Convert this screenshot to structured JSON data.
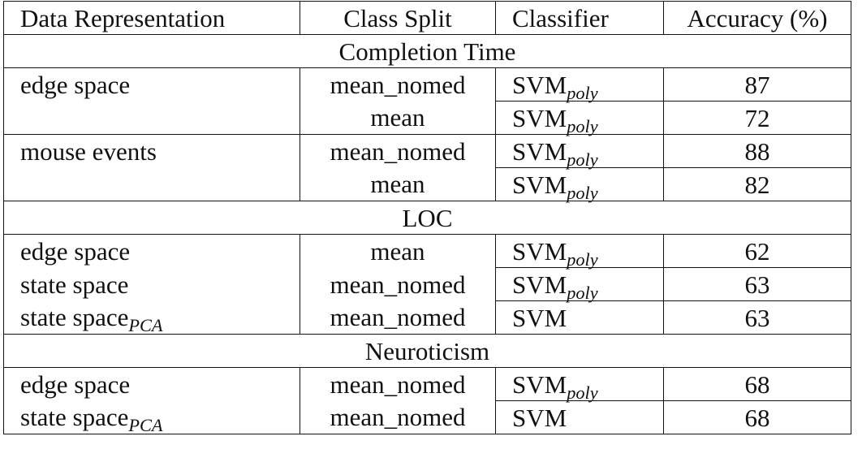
{
  "table": {
    "headers": [
      "Data Representation",
      "Class Split",
      "Classifier",
      "Accuracy (%)"
    ],
    "sections": [
      {
        "title": "Completion Time",
        "rows": [
          {
            "rep": "edge space",
            "rep_sub": "",
            "split": "mean_nomed",
            "clf": "SVM",
            "clf_sub": "poly",
            "acc": "87"
          },
          {
            "rep": "",
            "rep_sub": "",
            "split": "mean",
            "clf": "SVM",
            "clf_sub": "poly",
            "acc": "72"
          },
          {
            "rep": "mouse events",
            "rep_sub": "",
            "split": "mean_nomed",
            "clf": "SVM",
            "clf_sub": "poly",
            "acc": "88"
          },
          {
            "rep": "",
            "rep_sub": "",
            "split": "mean",
            "clf": "SVM",
            "clf_sub": "poly",
            "acc": "82"
          }
        ]
      },
      {
        "title": "LOC",
        "rows": [
          {
            "rep": "edge space",
            "rep_sub": "",
            "split": "mean",
            "clf": "SVM",
            "clf_sub": "poly",
            "acc": "62"
          },
          {
            "rep": "state space",
            "rep_sub": "",
            "split": "mean_nomed",
            "clf": "SVM",
            "clf_sub": "poly",
            "acc": "63"
          },
          {
            "rep": "state space",
            "rep_sub": "PCA",
            "split": "mean_nomed",
            "clf": "SVM",
            "clf_sub": "",
            "acc": "63"
          }
        ]
      },
      {
        "title": "Neuroticism",
        "rows": [
          {
            "rep": "edge space",
            "rep_sub": "",
            "split": "mean_nomed",
            "clf": "SVM",
            "clf_sub": "poly",
            "acc": "68"
          },
          {
            "rep": "state space",
            "rep_sub": "PCA",
            "split": "mean_nomed",
            "clf": "SVM",
            "clf_sub": "",
            "acc": "68"
          }
        ]
      }
    ]
  }
}
